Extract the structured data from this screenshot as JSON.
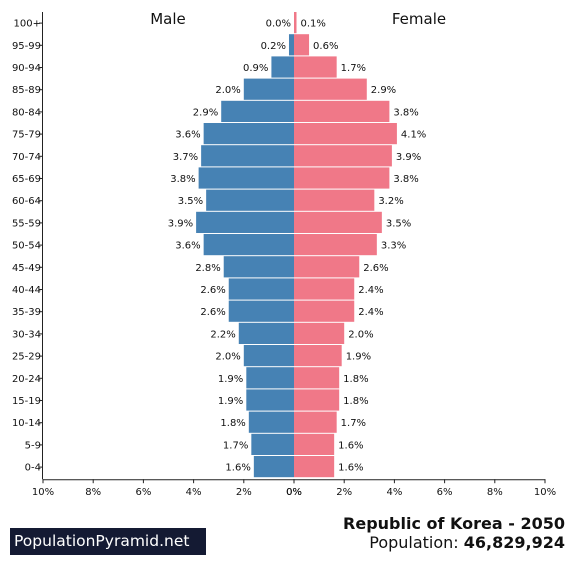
{
  "chart_data": {
    "type": "bar",
    "title": "Republic of Korea - 2050",
    "population_label": "Population:",
    "population_value": "46,829,924",
    "left_label": "Male",
    "right_label": "Female",
    "categories": [
      "100+",
      "95-99",
      "90-94",
      "85-89",
      "80-84",
      "75-79",
      "70-74",
      "65-69",
      "60-64",
      "55-59",
      "50-54",
      "45-49",
      "40-44",
      "35-39",
      "30-34",
      "25-29",
      "20-24",
      "15-19",
      "10-14",
      "5-9",
      "0-4"
    ],
    "series": [
      {
        "name": "Male",
        "values": [
          0.0,
          0.2,
          0.9,
          2.0,
          2.9,
          3.6,
          3.7,
          3.8,
          3.5,
          3.9,
          3.6,
          2.8,
          2.6,
          2.6,
          2.2,
          2.0,
          1.9,
          1.9,
          1.8,
          1.7,
          1.6
        ],
        "color": "#4682b4"
      },
      {
        "name": "Female",
        "values": [
          0.1,
          0.6,
          1.7,
          2.9,
          3.8,
          4.1,
          3.9,
          3.8,
          3.2,
          3.5,
          3.3,
          2.6,
          2.4,
          2.4,
          2.0,
          1.9,
          1.8,
          1.8,
          1.7,
          1.6,
          1.6
        ],
        "color": "#f07888"
      }
    ],
    "value_labels": {
      "male": [
        "0.0%",
        "0.2%",
        "0.9%",
        "2.0%",
        "2.9%",
        "3.6%",
        "3.7%",
        "3.8%",
        "3.5%",
        "3.9%",
        "3.6%",
        "2.8%",
        "2.6%",
        "2.6%",
        "2.2%",
        "2.0%",
        "1.9%",
        "1.9%",
        "1.8%",
        "1.7%",
        "1.6%"
      ],
      "female": [
        "0.1%",
        "0.6%",
        "1.7%",
        "2.9%",
        "3.8%",
        "4.1%",
        "3.9%",
        "3.8%",
        "3.2%",
        "3.5%",
        "3.3%",
        "2.6%",
        "2.4%",
        "2.4%",
        "2.0%",
        "1.9%",
        "1.8%",
        "1.8%",
        "1.7%",
        "1.6%",
        "1.6%"
      ]
    },
    "x_ticks_left": [
      "10%",
      "8%",
      "6%",
      "4%",
      "2%",
      "0%"
    ],
    "x_ticks_right": [
      "0%",
      "2%",
      "4%",
      "6%",
      "8%",
      "10%"
    ],
    "xlim": [
      0,
      10
    ],
    "grid": false
  },
  "branding": {
    "site": "PopulationPyramid.net"
  }
}
